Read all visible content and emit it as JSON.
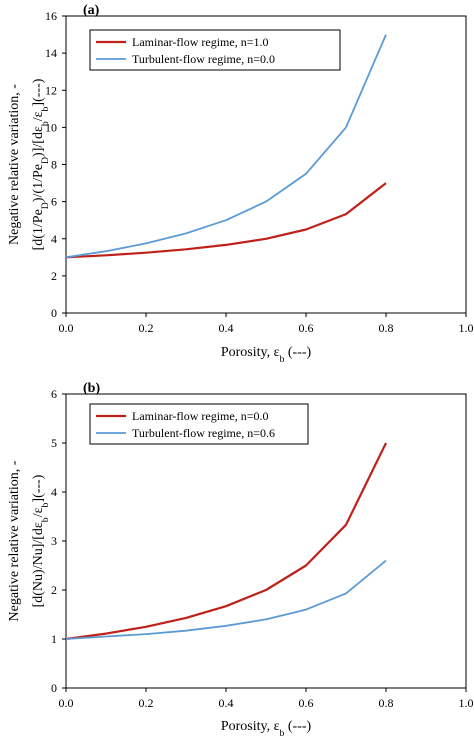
{
  "chart_data": [
    {
      "type": "line",
      "panel_label": "(a)",
      "xlabel": "Porosity, ε_b (---)",
      "ylabel_line1": "Negative relative variation, -",
      "ylabel_line2": "[d(1/Pe_D)/(1/Pe_D)]/[dε_b/ε_b](---)",
      "xlim": [
        0.0,
        1.0
      ],
      "ylim": [
        0,
        16
      ],
      "xticks": [
        "0.0",
        "0.2",
        "0.4",
        "0.6",
        "0.8",
        "1.0"
      ],
      "yticks": [
        "0",
        "2",
        "4",
        "6",
        "8",
        "10",
        "12",
        "14",
        "16"
      ],
      "grid": false,
      "legend_position": "top-left",
      "series": [
        {
          "name": "Laminar-flow regime, n=1.0",
          "color": "#c0201a",
          "x": [
            0.0,
            0.1,
            0.2,
            0.3,
            0.4,
            0.5,
            0.6,
            0.7,
            0.8
          ],
          "y": [
            3.0,
            3.11,
            3.25,
            3.43,
            3.67,
            4.0,
            4.5,
            5.33,
            7.0
          ]
        },
        {
          "name": "Turbulent-flow regime,  n=0.0",
          "color": "#5b9bd5",
          "x": [
            0.0,
            0.1,
            0.2,
            0.3,
            0.4,
            0.5,
            0.6,
            0.7,
            0.8
          ],
          "y": [
            3.0,
            3.33,
            3.75,
            4.29,
            5.0,
            6.0,
            7.5,
            10.0,
            15.0
          ]
        }
      ]
    },
    {
      "type": "line",
      "panel_label": "(b)",
      "xlabel": "Porosity, ε_b (---)",
      "ylabel_line1": "Negative relative variation, -",
      "ylabel_line2": "[d(Nu)/Nu]/[dε_b/ε_b](---)",
      "xlim": [
        0.0,
        1.0
      ],
      "ylim": [
        0,
        6
      ],
      "xticks": [
        "0.0",
        "0.2",
        "0.4",
        "0.6",
        "0.8",
        "1.0"
      ],
      "yticks": [
        "0",
        "1",
        "2",
        "3",
        "4",
        "5",
        "6"
      ],
      "grid": false,
      "legend_position": "top-left",
      "series": [
        {
          "name": "Laminar-flow regime,  n=0.0",
          "color": "#c0201a",
          "x": [
            0.0,
            0.1,
            0.2,
            0.3,
            0.4,
            0.5,
            0.6,
            0.7,
            0.8
          ],
          "y": [
            1.0,
            1.11,
            1.25,
            1.43,
            1.67,
            2.0,
            2.5,
            3.33,
            5.0
          ]
        },
        {
          "name": "Turbulent-flow regime,  n=0.6",
          "color": "#5b9bd5",
          "x": [
            0.0,
            0.1,
            0.2,
            0.3,
            0.4,
            0.5,
            0.6,
            0.7,
            0.8
          ],
          "y": [
            1.0,
            1.05,
            1.1,
            1.17,
            1.27,
            1.4,
            1.6,
            1.93,
            2.6
          ]
        }
      ]
    }
  ]
}
